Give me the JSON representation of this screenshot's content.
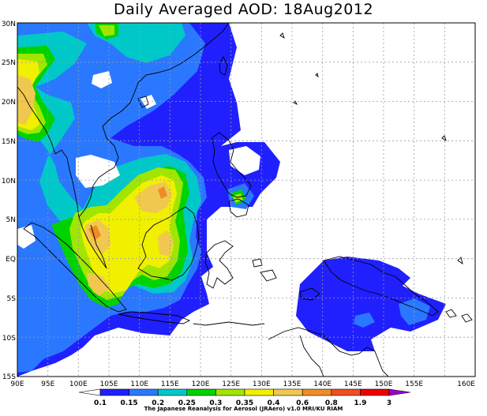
{
  "title": "Daily Averaged AOD: 18Aug2012",
  "credit": "The Japanese Reanalysis for Aerosol (JRAero) v1.0 MRI/KU RIAM",
  "map": {
    "lon_labels": [
      "90E",
      "95E",
      "100E",
      "105E",
      "110E",
      "115E",
      "120E",
      "125E",
      "130E",
      "135E",
      "140E",
      "145E",
      "150E",
      "155E",
      "160E"
    ],
    "lat_labels": [
      "30N",
      "25N",
      "20N",
      "15N",
      "10N",
      "5N",
      "EQ",
      "5S",
      "10S",
      "15S"
    ]
  },
  "colorbar": {
    "labels": [
      "0.1",
      "0.15",
      "0.2",
      "0.25",
      "0.3",
      "0.35",
      "0.4",
      "0.6",
      "0.8",
      "1.9",
      "3"
    ],
    "colors": [
      "#ffffff",
      "#2020ff",
      "#2a78ff",
      "#00c8c8",
      "#00d200",
      "#a0e600",
      "#f0f000",
      "#f0c850",
      "#f08c28",
      "#f05020",
      "#f00000",
      "#a000c8"
    ]
  },
  "levels": {
    "c1": "#2020ff",
    "c2": "#2a78ff",
    "c3": "#00c8c8",
    "c4": "#00d200",
    "c5": "#a0e600",
    "c6": "#f0f000",
    "c7": "#f0c850",
    "c8": "#f08c28"
  }
}
